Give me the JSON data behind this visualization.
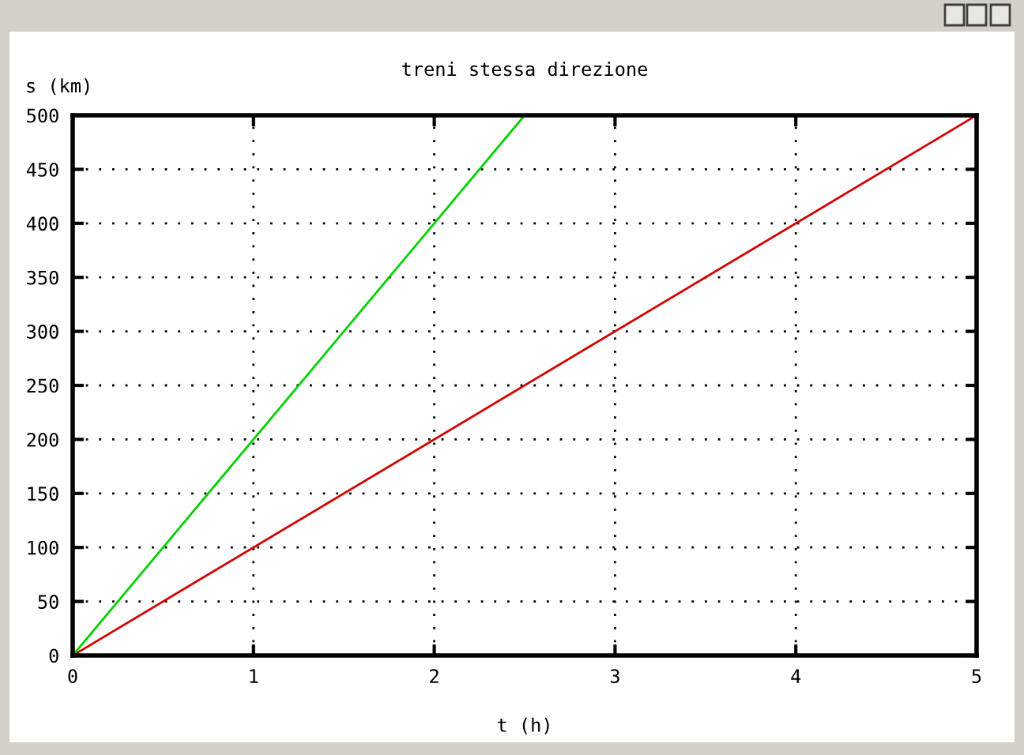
{
  "chart_data": {
    "type": "line",
    "title": "treni stessa direzione",
    "xlabel": "t (h)",
    "ylabel": "s (km)",
    "series": [
      {
        "color": "#d00000",
        "x": [
          0,
          5
        ],
        "values": [
          0,
          500
        ]
      },
      {
        "color": "#00d000",
        "x": [
          0,
          2.5
        ],
        "values": [
          0,
          500
        ]
      }
    ],
    "xlim": [
      0,
      5
    ],
    "xticks": [
      0,
      1,
      2,
      3,
      4,
      5
    ],
    "ylim": [
      0,
      500
    ],
    "yticks": [
      0,
      50,
      100,
      150,
      200,
      250,
      300,
      350,
      400,
      450,
      500
    ],
    "grid": true,
    "marker": "none",
    "line_style": "solid"
  }
}
